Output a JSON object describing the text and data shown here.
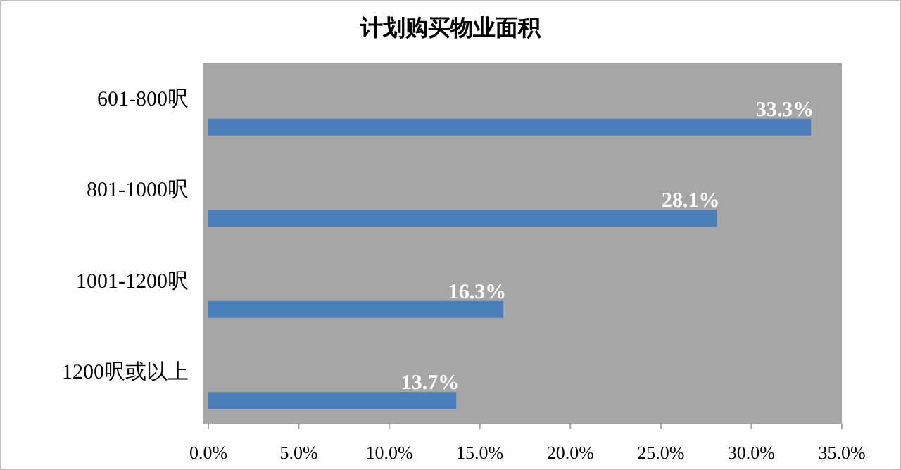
{
  "chart_data": {
    "type": "bar",
    "orientation": "horizontal",
    "title": "计划购买物业面积",
    "categories": [
      "601-800呎",
      "801-1000呎",
      "1001-1200呎",
      "1200呎或以上"
    ],
    "values": [
      33.3,
      28.1,
      16.3,
      13.7
    ],
    "value_labels": [
      "33.3%",
      "28.1%",
      "16.3%",
      "13.7%"
    ],
    "color": "#4a7ebb",
    "xlim": [
      0,
      35
    ],
    "xticks": [
      {
        "value": 0,
        "label": "0.0%"
      },
      {
        "value": 5,
        "label": "5.0%"
      },
      {
        "value": 10,
        "label": "10.0%"
      },
      {
        "value": 15,
        "label": "15.0%"
      },
      {
        "value": 20,
        "label": "20.0%"
      },
      {
        "value": 25,
        "label": "25.0%"
      },
      {
        "value": 30,
        "label": "30.0%"
      },
      {
        "value": 35,
        "label": "35.0%"
      }
    ],
    "grid": false
  }
}
